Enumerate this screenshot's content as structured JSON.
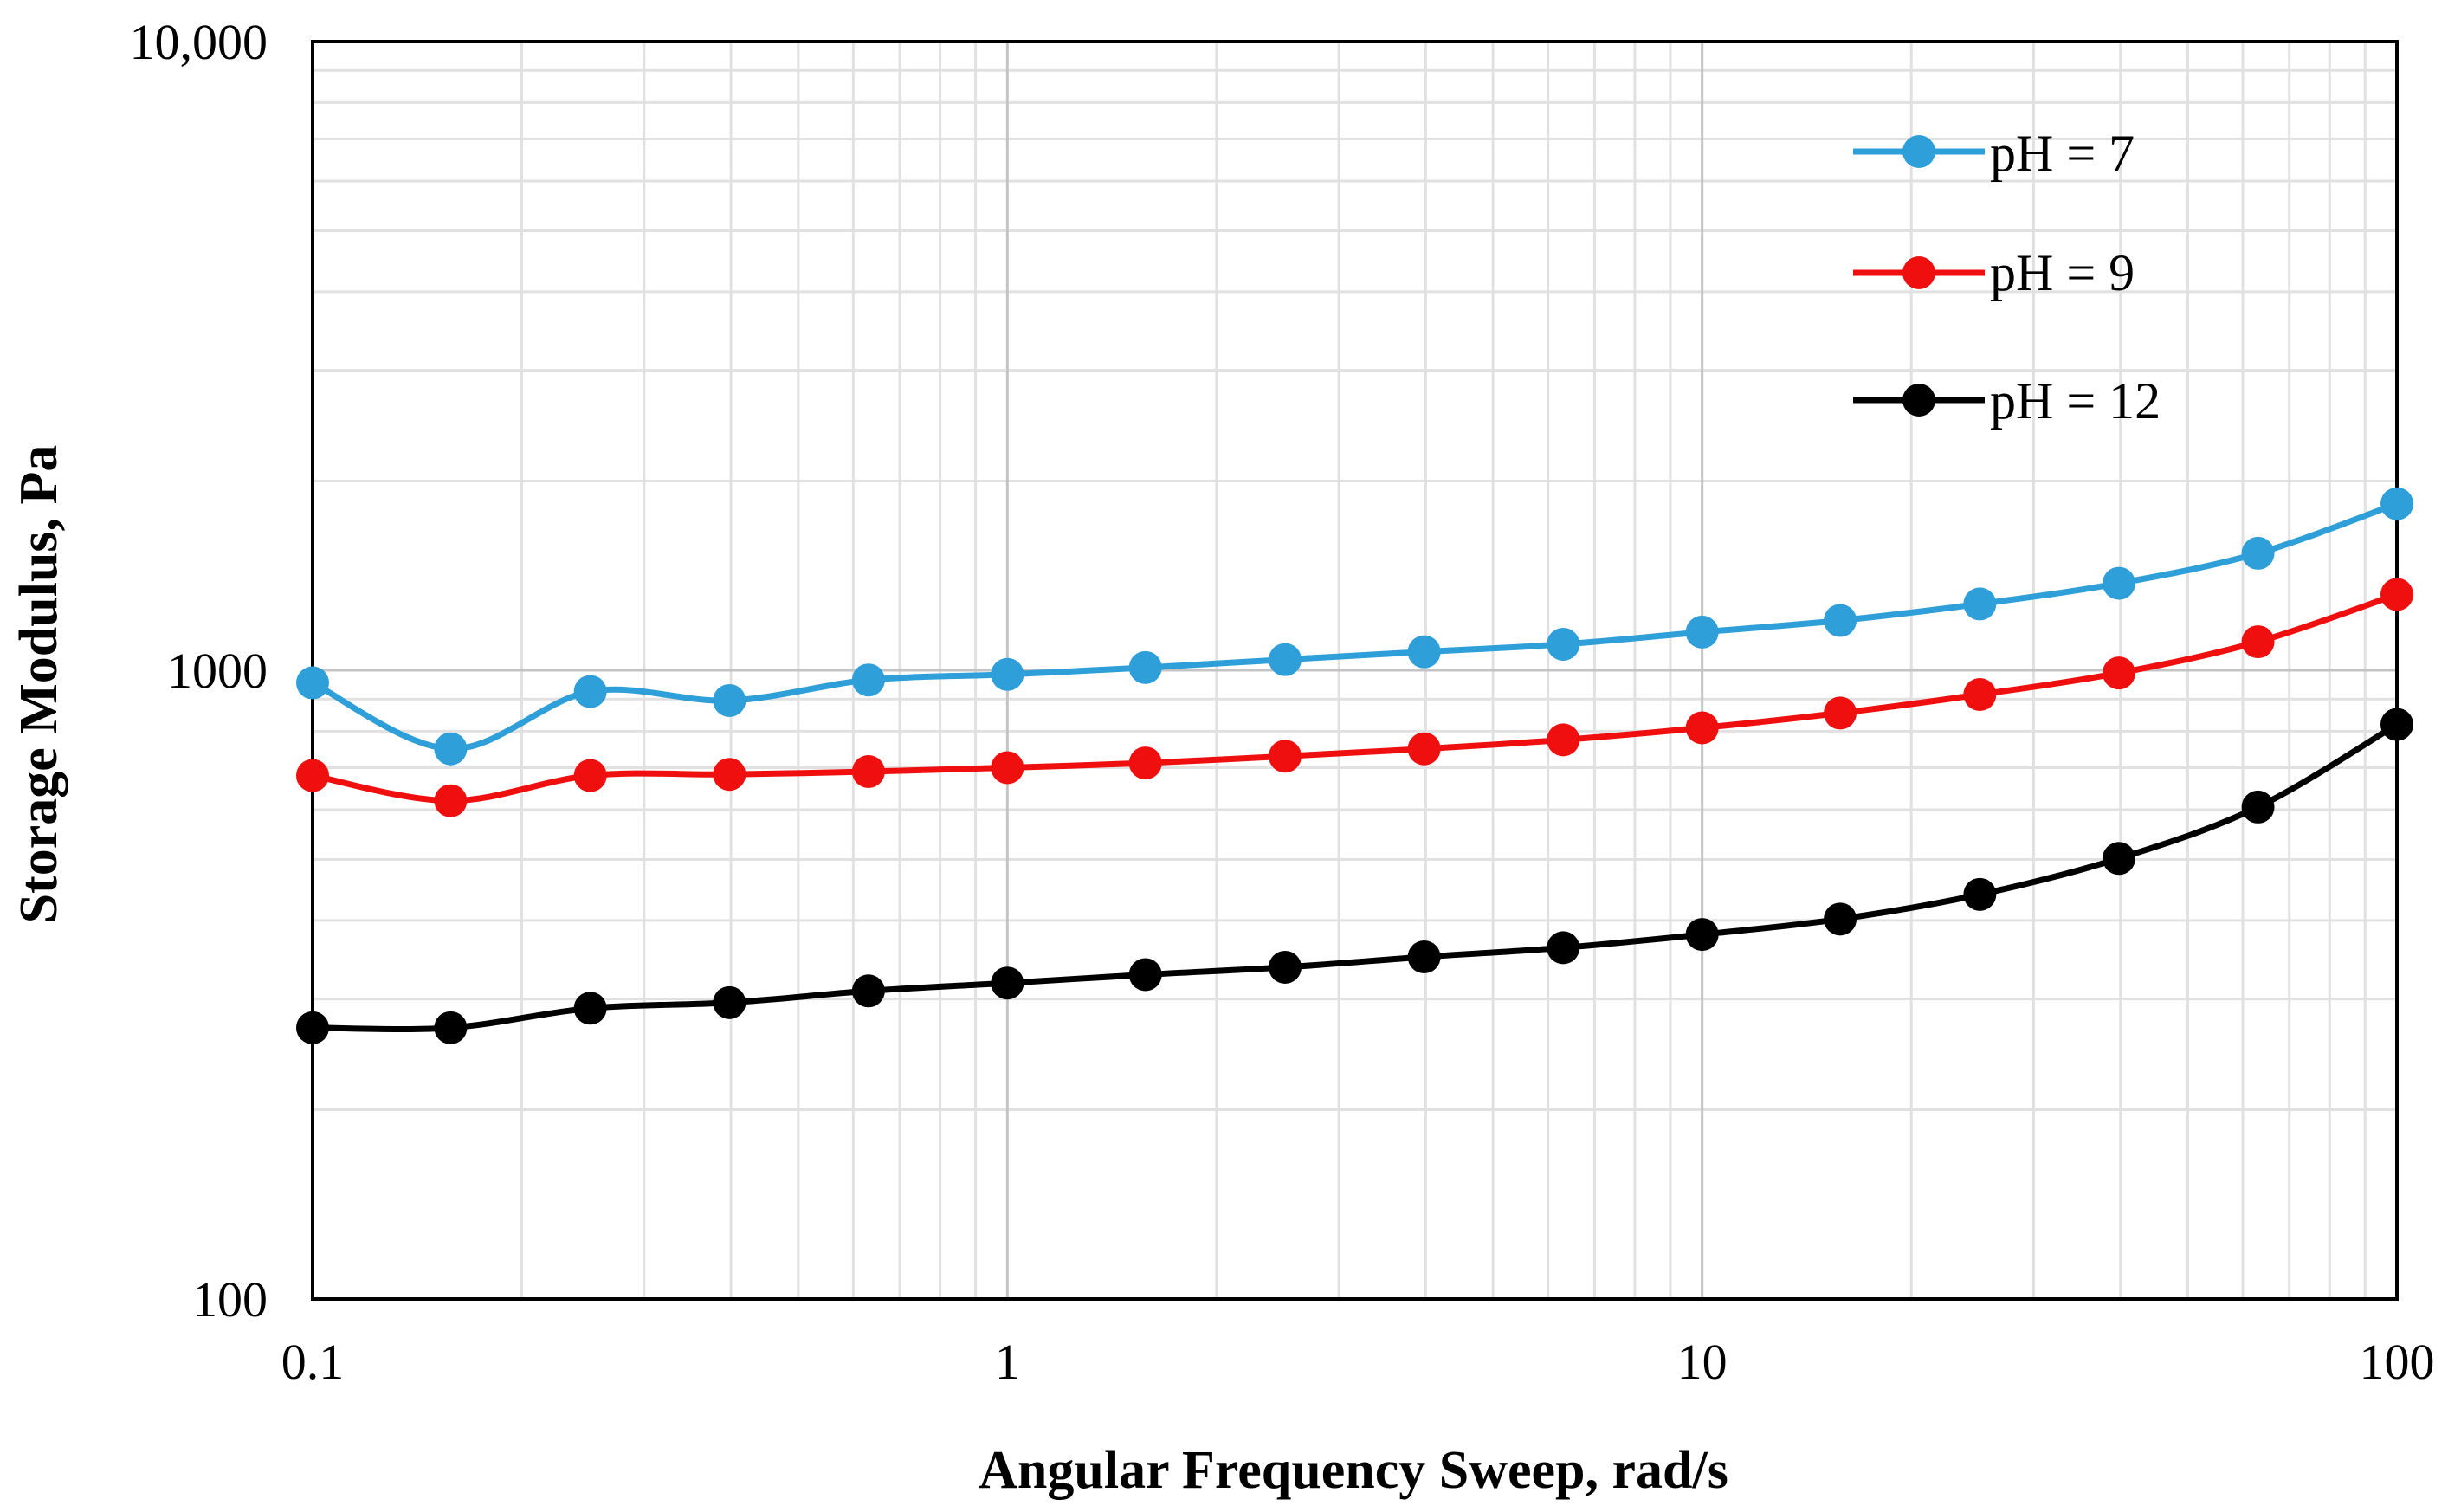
{
  "chart_data": {
    "type": "line",
    "title": "",
    "xlabel": "Angular Frequency Sweep, rad/s",
    "ylabel": "Storage Modulus,  Pa",
    "xscale": "log",
    "yscale": "log",
    "xlim": [
      0.1,
      100
    ],
    "ylim": [
      100,
      10000
    ],
    "x_tick_labels": [
      "0.1",
      "1",
      "10",
      "100"
    ],
    "y_tick_labels": [
      "100",
      "1000",
      "10,000"
    ],
    "grid": true,
    "legend_position": "top-right",
    "x": [
      0.1,
      0.158,
      0.251,
      0.398,
      0.631,
      1,
      1.58,
      2.51,
      3.98,
      6.31,
      10,
      15.8,
      25.1,
      39.8,
      63.1,
      100
    ],
    "series": [
      {
        "name": "pH = 7",
        "color": "#2e9fd8",
        "values": [
          955,
          750,
          925,
          895,
          965,
          985,
          1010,
          1040,
          1070,
          1100,
          1150,
          1200,
          1275,
          1375,
          1535,
          1840
        ]
      },
      {
        "name": "pH = 9",
        "color": "#f00f0f",
        "values": [
          680,
          620,
          680,
          683,
          690,
          700,
          712,
          730,
          750,
          775,
          810,
          855,
          915,
          990,
          1110,
          1320
        ]
      },
      {
        "name": "pH = 12",
        "color": "#000000",
        "values": [
          270,
          270,
          290,
          296,
          309,
          318,
          328,
          337,
          350,
          362,
          380,
          402,
          440,
          502,
          606,
          820
        ]
      }
    ]
  }
}
